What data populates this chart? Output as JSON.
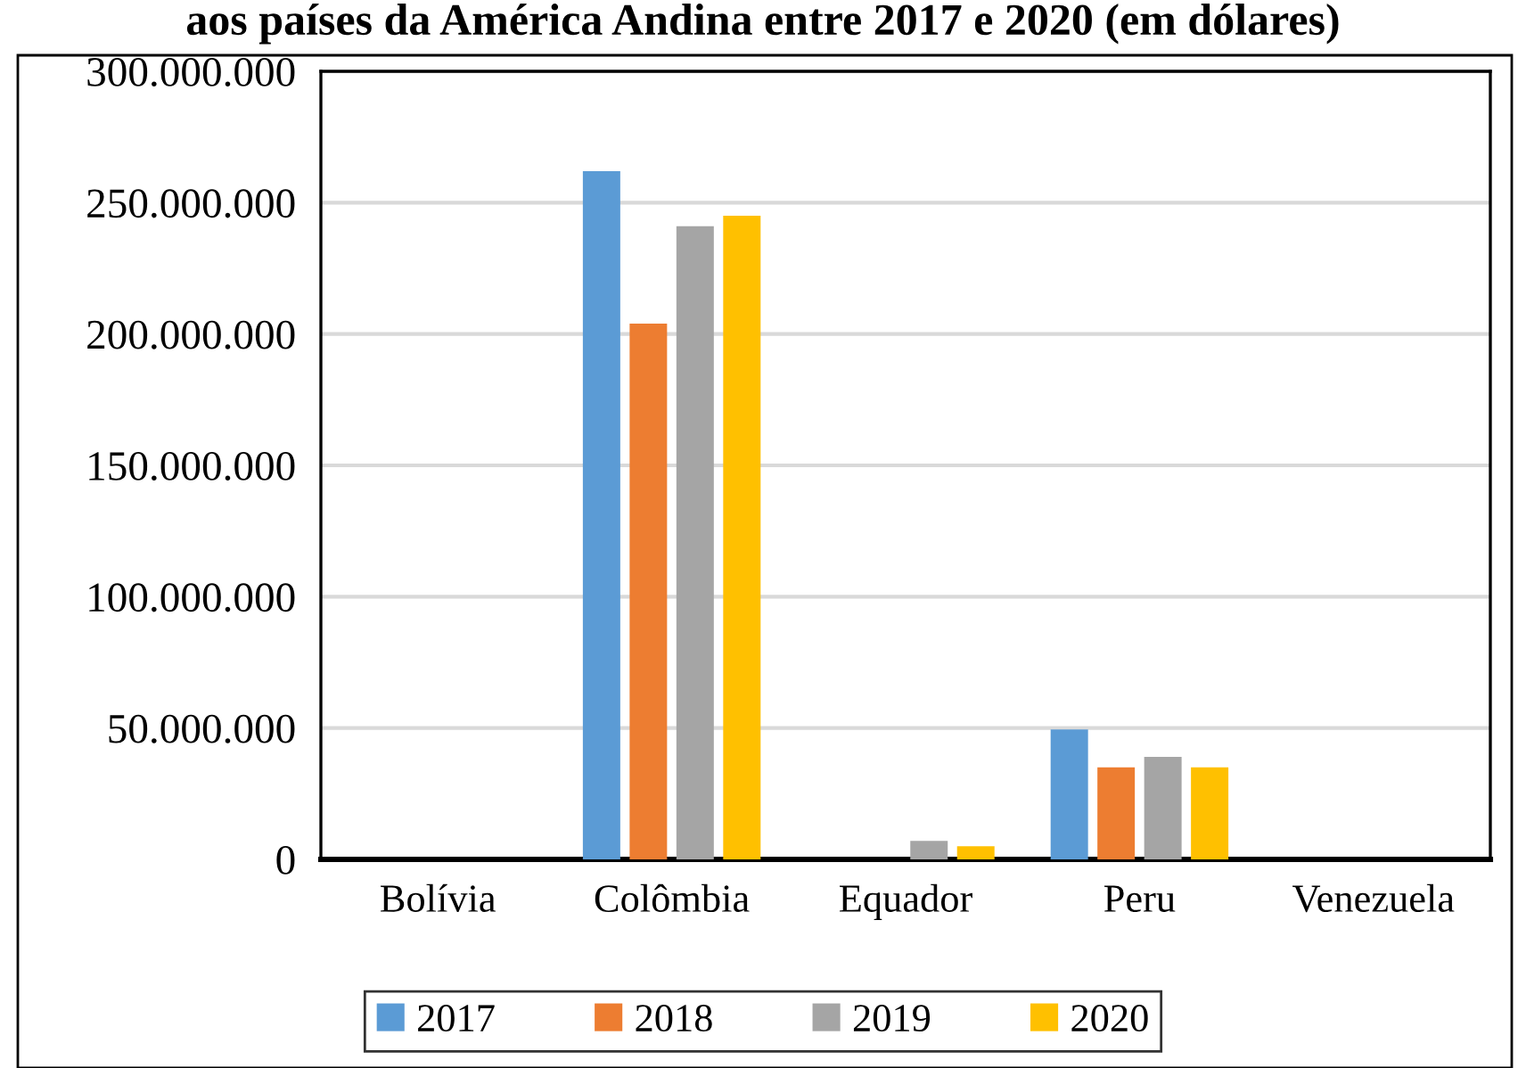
{
  "chart_data": {
    "type": "bar",
    "title": "aos países da América Andina entre 2017 e 2020 (em dólares)",
    "categories": [
      "Bolívia",
      "Colômbia",
      "Equador",
      "Peru",
      "Venezuela"
    ],
    "series": [
      {
        "name": "2017",
        "color": "#5b9bd5",
        "values": [
          0,
          262000000,
          0,
          49500000,
          0
        ]
      },
      {
        "name": "2018",
        "color": "#ed7d31",
        "values": [
          0,
          204000000,
          0,
          35000000,
          0
        ]
      },
      {
        "name": "2019",
        "color": "#a5a5a5",
        "values": [
          0,
          241000000,
          7000000,
          39000000,
          0
        ]
      },
      {
        "name": "2020",
        "color": "#ffc000",
        "values": [
          0,
          245000000,
          5000000,
          35000000,
          0
        ]
      }
    ],
    "ylim": [
      0,
      300000000
    ],
    "yticks": [
      {
        "value": 0,
        "label": "0"
      },
      {
        "value": 50000000,
        "label": "50.000.000"
      },
      {
        "value": 100000000,
        "label": "100.000.000"
      },
      {
        "value": 150000000,
        "label": "150.000.000"
      },
      {
        "value": 200000000,
        "label": "200.000.000"
      },
      {
        "value": 250000000,
        "label": "250.000.000"
      },
      {
        "value": 300000000,
        "label": "300.000.000"
      }
    ],
    "grid": "y",
    "legend": "bottom"
  }
}
